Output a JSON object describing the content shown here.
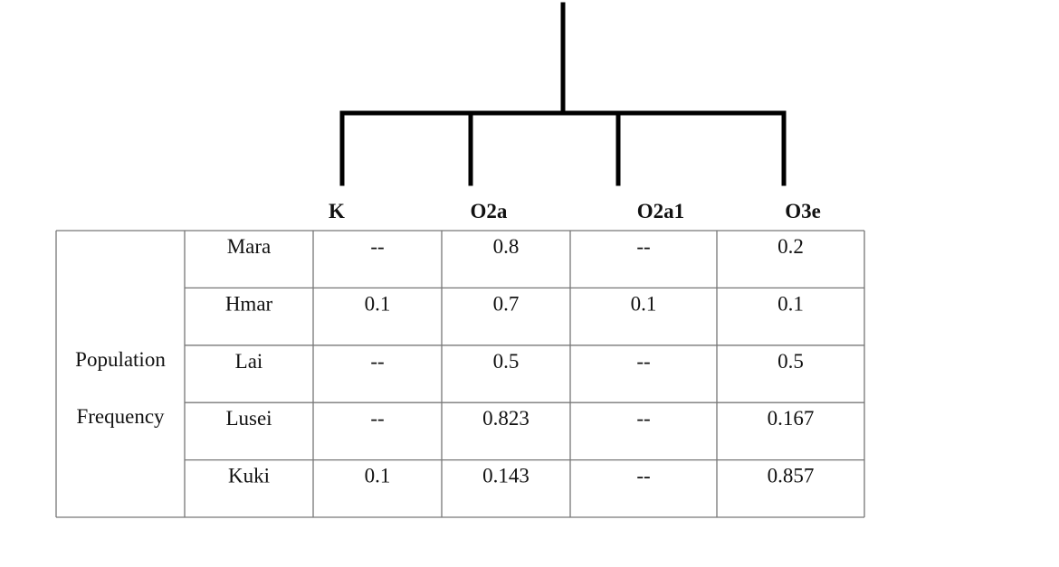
{
  "tree_labels": [
    "K",
    "O2a",
    "O2a1",
    "O3e"
  ],
  "table": {
    "group_label": [
      "Population",
      "Frequency"
    ],
    "rows": [
      {
        "name": "Mara",
        "cells": [
          "--",
          0.8,
          "--",
          0.2
        ]
      },
      {
        "name": "Hmar",
        "cells": [
          0.1,
          0.7,
          0.1,
          0.1
        ]
      },
      {
        "name": "Lai",
        "cells": [
          "--",
          0.5,
          "--",
          0.5
        ]
      },
      {
        "name": "Lusei",
        "cells": [
          "--",
          0.823,
          "--",
          0.167
        ]
      },
      {
        "name": "Kuki",
        "cells": [
          0.1,
          0.143,
          "--",
          0.857
        ]
      }
    ]
  }
}
